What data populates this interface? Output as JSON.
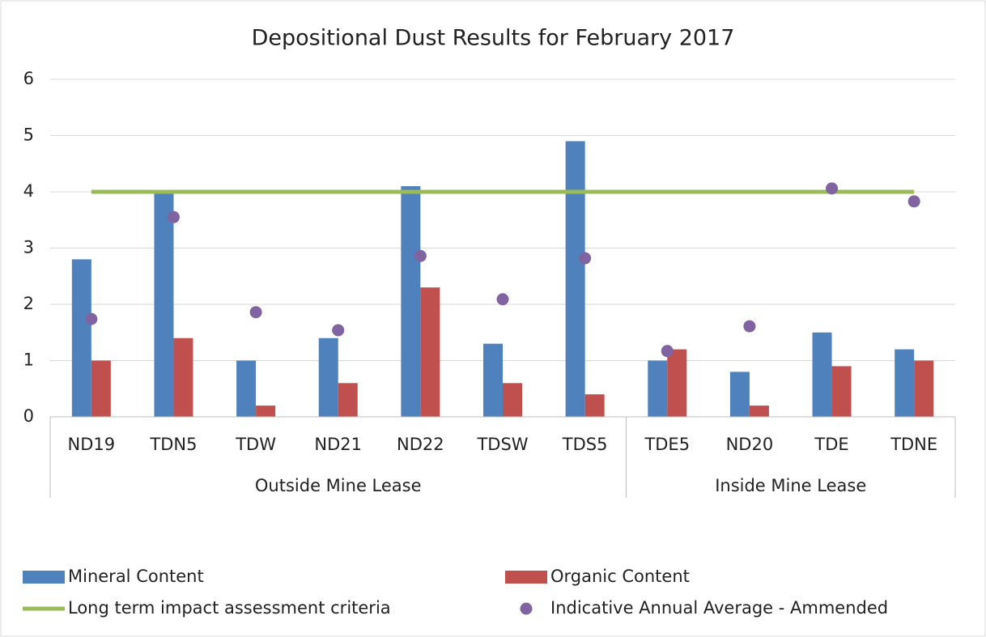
{
  "chart_data": {
    "type": "bar",
    "title": "Depositional Dust Results for February 2017",
    "groups": [
      {
        "name": "Outside Mine Lease",
        "categories": [
          "ND19",
          "TDN5",
          "TDW",
          "ND21",
          "ND22",
          "TDSW",
          "TDS5"
        ]
      },
      {
        "name": "Inside Mine Lease",
        "categories": [
          "TDE5",
          "ND20",
          "TDE",
          "TDNE"
        ]
      }
    ],
    "series": [
      {
        "name": "Mineral Content",
        "type": "bar",
        "color": "#4f81bd",
        "values": [
          2.8,
          4.0,
          1.0,
          1.4,
          4.1,
          1.3,
          4.9,
          1.0,
          0.8,
          1.5,
          1.2
        ]
      },
      {
        "name": "Organic Content",
        "type": "bar",
        "color": "#c0504d",
        "values": [
          1.0,
          1.4,
          0.2,
          0.6,
          2.3,
          0.6,
          0.4,
          1.2,
          0.2,
          0.9,
          1.0
        ]
      },
      {
        "name": "Long term impact assessment criteria",
        "type": "line",
        "color": "#9bbb59",
        "values": [
          4,
          4,
          4,
          4,
          4,
          4,
          4,
          4,
          4,
          4,
          4
        ]
      },
      {
        "name": "Indicative Annual Average - Ammended",
        "type": "scatter",
        "color": "#8064a2",
        "values": [
          1.74,
          3.55,
          1.86,
          1.54,
          2.86,
          2.09,
          2.82,
          1.17,
          1.61,
          4.06,
          3.83
        ]
      }
    ],
    "ylim": [
      0,
      6
    ],
    "yticks": [
      0,
      1,
      2,
      3,
      4,
      5,
      6
    ],
    "grid": true
  }
}
